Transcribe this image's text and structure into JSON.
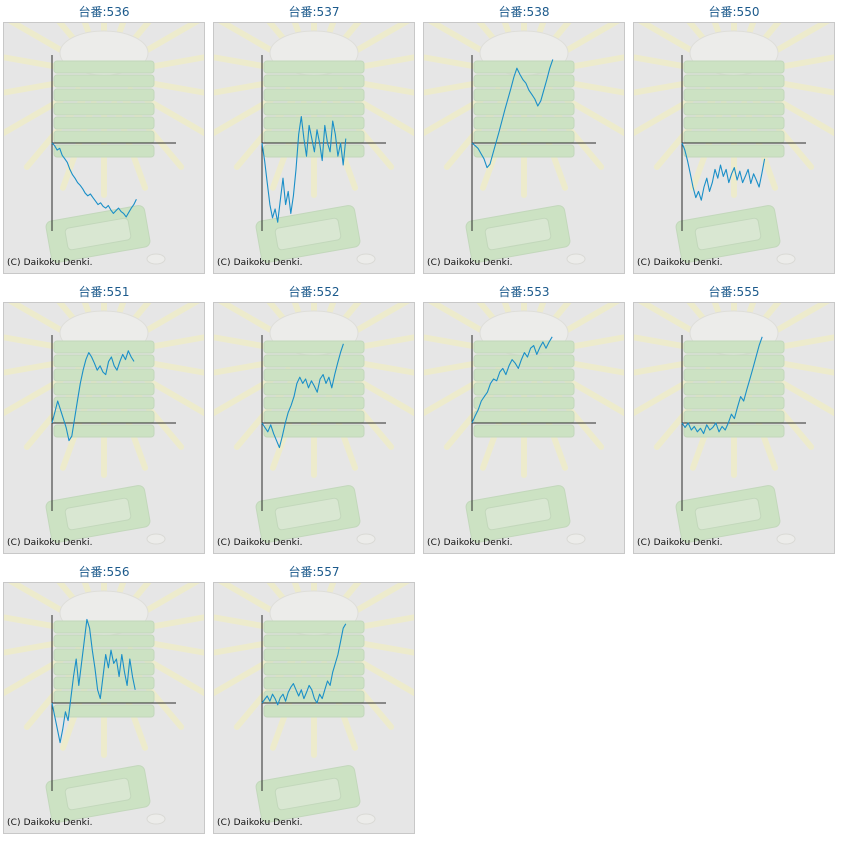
{
  "page": {
    "title_prefix": "台番:"
  },
  "copyright": "(C) Daikoku Denki.",
  "colors": {
    "background": "#e6e6e6",
    "frame_border": "#c8c8c8",
    "title": "#1c5a8c",
    "series_line": "#1a8fc8",
    "axis": "#2a2a2a",
    "decoration_green": "#b8e0a8",
    "decoration_rays": "#f4f0b8"
  },
  "graph_icon": "slot-machine-illustration-icon",
  "machines": [
    {
      "label": "台番:536",
      "values": [
        0,
        -0.03,
        -0.08,
        -0.06,
        -0.14,
        -0.18,
        -0.22,
        -0.3,
        -0.36,
        -0.4,
        -0.45,
        -0.48,
        -0.52,
        -0.57,
        -0.6,
        -0.58,
        -0.62,
        -0.66,
        -0.7,
        -0.68,
        -0.72,
        -0.74,
        -0.71,
        -0.76,
        -0.8,
        -0.77,
        -0.74,
        -0.78,
        -0.8,
        -0.84,
        -0.79,
        -0.74,
        -0.7,
        -0.64
      ]
    },
    {
      "label": "台番:537",
      "values": [
        0,
        -0.2,
        -0.45,
        -0.7,
        -0.85,
        -0.75,
        -0.9,
        -0.65,
        -0.4,
        -0.7,
        -0.55,
        -0.8,
        -0.6,
        -0.3,
        0.1,
        0.3,
        0.05,
        -0.15,
        0.2,
        0.05,
        -0.1,
        0.15,
        0.0,
        -0.2,
        0.2,
        0.0,
        -0.1,
        0.25,
        0.1,
        -0.15,
        0.0,
        -0.25,
        0.05
      ]
    },
    {
      "label": "台番:538",
      "values": [
        0,
        -0.03,
        -0.06,
        -0.12,
        -0.18,
        -0.28,
        -0.24,
        -0.12,
        0.0,
        0.12,
        0.25,
        0.38,
        0.5,
        0.62,
        0.75,
        0.85,
        0.78,
        0.72,
        0.68,
        0.6,
        0.55,
        0.5,
        0.42,
        0.48,
        0.6,
        0.72,
        0.85,
        0.95
      ]
    },
    {
      "label": "台番:550",
      "values": [
        0,
        -0.08,
        -0.2,
        -0.35,
        -0.5,
        -0.62,
        -0.55,
        -0.65,
        -0.5,
        -0.4,
        -0.55,
        -0.45,
        -0.3,
        -0.4,
        -0.25,
        -0.38,
        -0.3,
        -0.45,
        -0.35,
        -0.28,
        -0.42,
        -0.32,
        -0.45,
        -0.38,
        -0.3,
        -0.46,
        -0.35,
        -0.42,
        -0.5,
        -0.35,
        -0.18
      ]
    },
    {
      "label": "台番:551",
      "values": [
        0,
        0.12,
        0.25,
        0.15,
        0.05,
        -0.05,
        -0.2,
        -0.15,
        0.05,
        0.25,
        0.45,
        0.6,
        0.72,
        0.8,
        0.75,
        0.68,
        0.6,
        0.65,
        0.58,
        0.55,
        0.7,
        0.75,
        0.65,
        0.6,
        0.7,
        0.78,
        0.72,
        0.82,
        0.75,
        0.7
      ]
    },
    {
      "label": "台番:552",
      "values": [
        0,
        -0.05,
        -0.1,
        -0.02,
        -0.12,
        -0.2,
        -0.28,
        -0.15,
        0.0,
        0.12,
        0.2,
        0.3,
        0.45,
        0.52,
        0.45,
        0.5,
        0.4,
        0.48,
        0.42,
        0.35,
        0.5,
        0.55,
        0.45,
        0.52,
        0.4,
        0.55,
        0.68,
        0.8,
        0.9
      ]
    },
    {
      "label": "台番:553",
      "values": [
        0,
        0.08,
        0.15,
        0.25,
        0.3,
        0.35,
        0.45,
        0.5,
        0.48,
        0.58,
        0.62,
        0.55,
        0.65,
        0.72,
        0.68,
        0.62,
        0.72,
        0.8,
        0.75,
        0.85,
        0.88,
        0.78,
        0.86,
        0.92,
        0.85,
        0.92,
        0.98
      ]
    },
    {
      "label": "台番:555",
      "values": [
        0,
        -0.05,
        0.0,
        -0.08,
        -0.04,
        -0.1,
        -0.06,
        -0.12,
        -0.02,
        -0.08,
        -0.05,
        0.0,
        -0.1,
        -0.04,
        -0.08,
        0.0,
        0.1,
        0.05,
        0.18,
        0.3,
        0.25,
        0.38,
        0.5,
        0.62,
        0.75,
        0.88,
        0.98
      ]
    },
    {
      "label": "台番:556",
      "values": [
        0,
        -0.15,
        -0.3,
        -0.45,
        -0.3,
        -0.1,
        -0.2,
        0.05,
        0.3,
        0.5,
        0.2,
        0.45,
        0.7,
        0.95,
        0.85,
        0.6,
        0.4,
        0.15,
        0.05,
        0.3,
        0.55,
        0.4,
        0.6,
        0.45,
        0.5,
        0.3,
        0.55,
        0.35,
        0.2,
        0.5,
        0.3,
        0.15
      ]
    },
    {
      "label": "台番:557",
      "values": [
        0,
        0.04,
        0.08,
        0.02,
        0.1,
        0.05,
        -0.02,
        0.06,
        0.1,
        0.02,
        0.12,
        0.18,
        0.22,
        0.15,
        0.08,
        0.15,
        0.05,
        0.12,
        0.2,
        0.15,
        0.05,
        0.0,
        0.1,
        0.05,
        0.15,
        0.25,
        0.2,
        0.35,
        0.45,
        0.55,
        0.7,
        0.85,
        0.9
      ]
    }
  ]
}
